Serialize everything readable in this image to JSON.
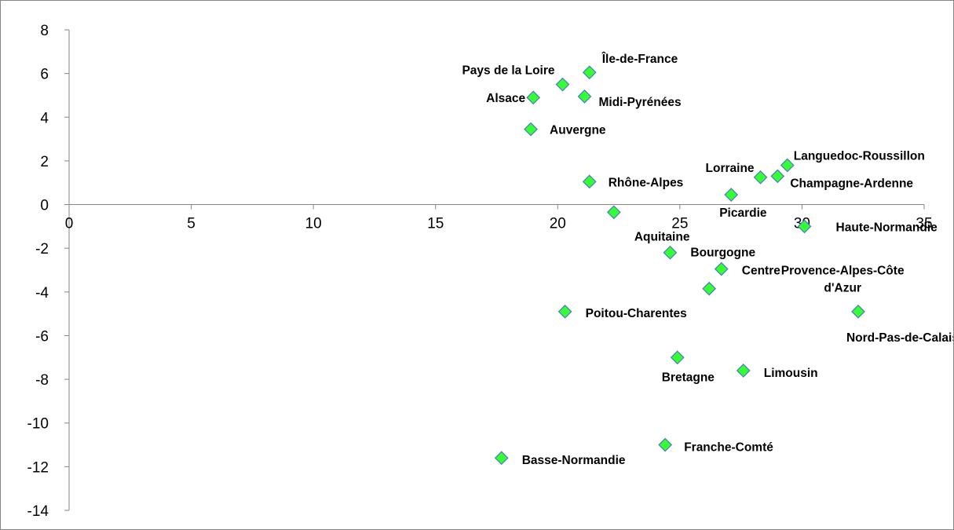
{
  "chart_data": {
    "type": "scatter",
    "title": "",
    "xlabel": "",
    "ylabel": "",
    "xlim": [
      0,
      35
    ],
    "ylim": [
      -14,
      8
    ],
    "x_ticks": [
      0,
      5,
      10,
      15,
      20,
      25,
      30,
      35
    ],
    "y_ticks": [
      8,
      6,
      4,
      2,
      0,
      -2,
      -4,
      -6,
      -8,
      -10,
      -12,
      -14
    ],
    "grid": false,
    "legend": "none",
    "marker": {
      "shape": "diamond",
      "fill": "#33FF33",
      "stroke": "#4F81BD"
    },
    "points": [
      {
        "label": "Île-de-France",
        "x": 21.3,
        "y": 6.05
      },
      {
        "label": "Pays de la Loire",
        "x": 20.2,
        "y": 5.5
      },
      {
        "label": "Alsace",
        "x": 19.0,
        "y": 4.9
      },
      {
        "label": "Midi-Pyrénées",
        "x": 21.1,
        "y": 4.95
      },
      {
        "label": "Auvergne",
        "x": 18.9,
        "y": 3.45
      },
      {
        "label": "Languedoc-Roussillon",
        "x": 29.4,
        "y": 1.8
      },
      {
        "label": "Lorraine",
        "x": 28.3,
        "y": 1.25
      },
      {
        "label": "Champagne-Ardenne",
        "x": 29.0,
        "y": 1.3
      },
      {
        "label": "Rhône-Alpes",
        "x": 21.3,
        "y": 1.05
      },
      {
        "label": "Picardie",
        "x": 27.1,
        "y": 0.45
      },
      {
        "label": "Aquitaine",
        "x": 22.3,
        "y": -0.35
      },
      {
        "label": "Haute-Normandie",
        "x": 30.1,
        "y": -1.0
      },
      {
        "label": "Bourgogne",
        "x": 24.6,
        "y": -2.2
      },
      {
        "label": "Centre",
        "x": 26.7,
        "y": -2.95
      },
      {
        "label": "Provence-Alpes-Côte d'Azur",
        "x": 26.2,
        "y": -3.85
      },
      {
        "label": "Poitou-Charentes",
        "x": 20.3,
        "y": -4.9
      },
      {
        "label": "Nord-Pas-de-Calais",
        "x": 32.3,
        "y": -4.9
      },
      {
        "label": "Bretagne",
        "x": 24.9,
        "y": -7.0
      },
      {
        "label": "Limousin",
        "x": 27.6,
        "y": -7.6
      },
      {
        "label": "Franche-Comté",
        "x": 24.4,
        "y": -11.0
      },
      {
        "label": "Basse-Normandie",
        "x": 17.7,
        "y": -11.6
      }
    ]
  }
}
